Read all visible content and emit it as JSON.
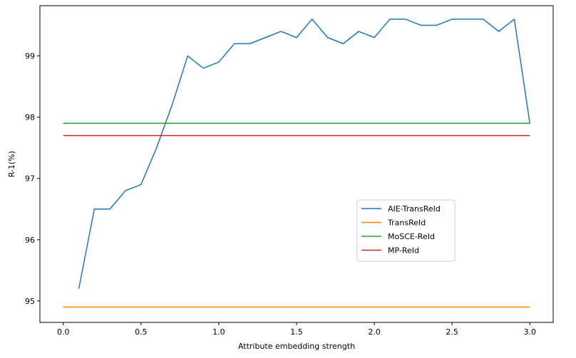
{
  "chart_data": {
    "type": "line",
    "title": "",
    "xlabel": "Attribute embedding strength",
    "ylabel": "R-1(%)",
    "xlim": [
      -0.15,
      3.15
    ],
    "ylim": [
      94.65,
      99.82
    ],
    "xticks": [
      0.0,
      0.5,
      1.0,
      1.5,
      2.0,
      2.5,
      3.0
    ],
    "xtick_labels": [
      "0.0",
      "0.5",
      "1.0",
      "1.5",
      "2.0",
      "2.5",
      "3.0"
    ],
    "yticks": [
      95,
      96,
      97,
      98,
      99
    ],
    "ytick_labels": [
      "95",
      "96",
      "97",
      "98",
      "99"
    ],
    "grid": false,
    "legend_position": "center-right",
    "series": [
      {
        "name": "AIE-TransReId",
        "color": "#1f77b4",
        "x": [
          0.1,
          0.2,
          0.3,
          0.4,
          0.5,
          0.6,
          0.7,
          0.8,
          0.9,
          1.0,
          1.1,
          1.2,
          1.3,
          1.4,
          1.5,
          1.6,
          1.7,
          1.8,
          1.9,
          2.0,
          2.1,
          2.2,
          2.3,
          2.4,
          2.5,
          2.6,
          2.7,
          2.8,
          2.9,
          3.0
        ],
        "y": [
          95.2,
          96.5,
          96.5,
          96.8,
          96.9,
          97.5,
          98.2,
          99.0,
          98.8,
          98.9,
          99.2,
          99.2,
          99.3,
          99.4,
          99.3,
          99.6,
          99.3,
          99.2,
          99.4,
          99.3,
          99.6,
          99.6,
          99.5,
          99.5,
          99.6,
          99.6,
          99.6,
          99.4,
          99.6,
          97.9
        ]
      },
      {
        "name": "TransReId",
        "color": "#ff7f0e",
        "x": [
          0.0,
          3.0
        ],
        "y": [
          94.9,
          94.9
        ]
      },
      {
        "name": "MoSCE-ReId",
        "color": "#2ca02c",
        "x": [
          0.0,
          3.0
        ],
        "y": [
          97.9,
          97.9
        ]
      },
      {
        "name": "MP-ReId",
        "color": "#d62728",
        "x": [
          0.0,
          3.0
        ],
        "y": [
          97.7,
          97.7
        ]
      }
    ]
  }
}
